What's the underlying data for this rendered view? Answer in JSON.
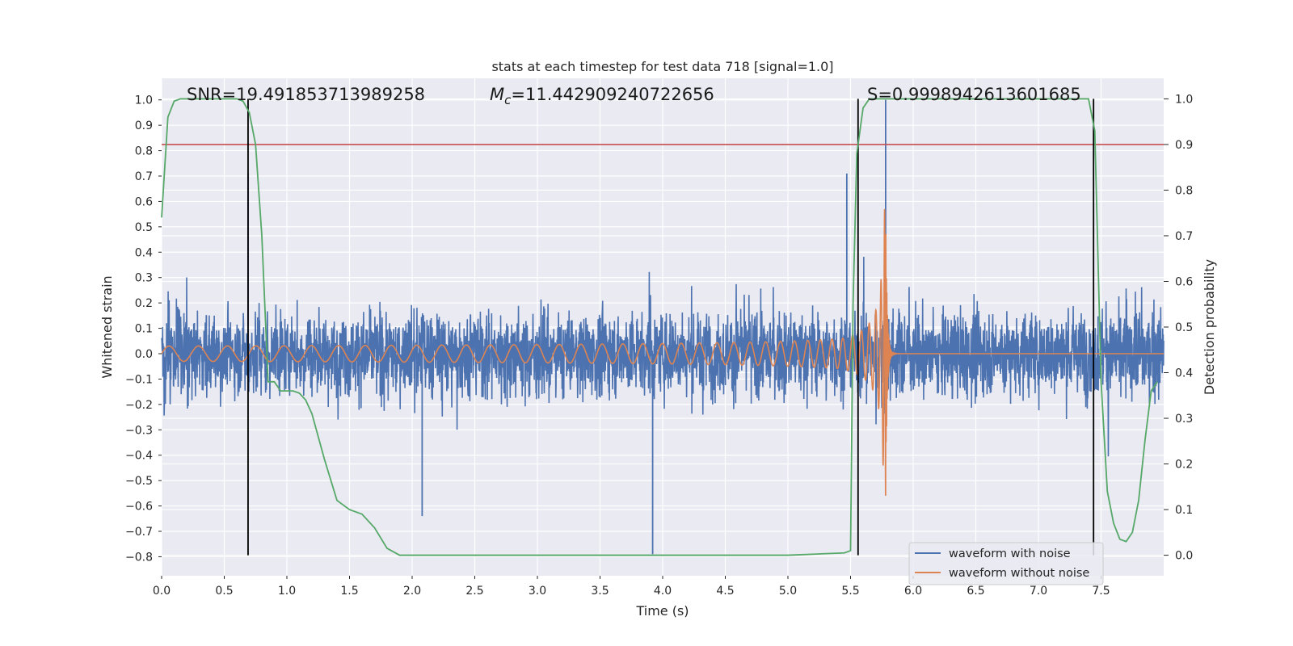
{
  "chart_data": {
    "type": "line",
    "title": "stats at each timestep for test data 718 [signal=1.0]",
    "xlabel": "Time (s)",
    "ylabel": "Whitened strain",
    "ylabel_right": "Detection probability",
    "xlim": [
      0.0,
      8.0
    ],
    "ylim": [
      -0.875,
      1.085
    ],
    "ylim_right": [
      -0.045,
      1.045
    ],
    "xticks": [
      "0.0",
      "0.5",
      "1.0",
      "1.5",
      "2.0",
      "2.5",
      "3.0",
      "3.5",
      "4.0",
      "4.5",
      "5.0",
      "5.5",
      "6.0",
      "6.5",
      "7.0",
      "7.5"
    ],
    "xtick_values": [
      0.0,
      0.5,
      1.0,
      1.5,
      2.0,
      2.5,
      3.0,
      3.5,
      4.0,
      4.5,
      5.0,
      5.5,
      6.0,
      6.5,
      7.0,
      7.5
    ],
    "yticks": [
      "1.0",
      "0.9",
      "0.8",
      "0.7",
      "0.6",
      "0.5",
      "0.4",
      "0.3",
      "0.2",
      "0.1",
      "0.0",
      "−0.1",
      "−0.2",
      "−0.3",
      "−0.4",
      "−0.5",
      "−0.6",
      "−0.7",
      "−0.8"
    ],
    "ytick_values": [
      1.0,
      0.9,
      0.8,
      0.7,
      0.6,
      0.5,
      0.4,
      0.3,
      0.2,
      0.1,
      0.0,
      -0.1,
      -0.2,
      -0.3,
      -0.4,
      -0.5,
      -0.6,
      -0.7,
      -0.8
    ],
    "yticks_right": [
      "1.0",
      "0.9",
      "0.8",
      "0.7",
      "0.6",
      "0.5",
      "0.4",
      "0.3",
      "0.2",
      "0.1",
      "0.0"
    ],
    "ytick_values_right": [
      1.0,
      0.9,
      0.8,
      0.7,
      0.6,
      0.5,
      0.4,
      0.3,
      0.2,
      0.1,
      0.0
    ],
    "annotations": {
      "snr": "SNR=19.491853713989258",
      "mc": "=11.442909240722656",
      "mc_symbol": "M",
      "mc_sub": "c",
      "s_value": "S=0.9998942613601685"
    },
    "threshold_probability": 0.9,
    "vertical_markers": [
      0.69,
      5.56,
      7.44
    ],
    "series": [
      {
        "name": "waveform with noise",
        "color": "#4c72b0",
        "description_values": {
          "typical_amplitude": 0.28,
          "max": 1.0,
          "min": -0.8
        }
      },
      {
        "name": "waveform without noise",
        "color": "#dd8452",
        "chirp": {
          "start_amp": 0.03,
          "merger_time": 5.78,
          "peak_amp": 0.57
        }
      },
      {
        "name": "Detection probability",
        "color": "#55a868",
        "axis": "right",
        "x": [
          0.0,
          0.05,
          0.1,
          0.15,
          0.2,
          0.3,
          0.4,
          0.5,
          0.6,
          0.65,
          0.7,
          0.75,
          0.8,
          0.85,
          0.9,
          0.95,
          1.0,
          1.05,
          1.1,
          1.15,
          1.2,
          1.3,
          1.4,
          1.5,
          1.6,
          1.7,
          1.8,
          1.9,
          2.0,
          3.0,
          4.0,
          5.0,
          5.45,
          5.5,
          5.52,
          5.55,
          5.6,
          5.65,
          5.7,
          5.8,
          6.0,
          7.0,
          7.35,
          7.4,
          7.45,
          7.5,
          7.55,
          7.6,
          7.65,
          7.7,
          7.75,
          7.8,
          7.85,
          7.9,
          7.95
        ],
        "y": [
          0.74,
          0.96,
          0.995,
          1.0,
          1.0,
          1.0,
          1.0,
          1.0,
          1.0,
          0.995,
          0.97,
          0.9,
          0.7,
          0.38,
          0.38,
          0.36,
          0.36,
          0.36,
          0.355,
          0.34,
          0.31,
          0.21,
          0.12,
          0.1,
          0.09,
          0.06,
          0.015,
          0.0,
          0.0,
          0.0,
          0.0,
          0.0,
          0.005,
          0.01,
          0.55,
          0.88,
          0.98,
          1.0,
          1.0,
          1.0,
          1.0,
          1.0,
          1.0,
          1.0,
          0.93,
          0.38,
          0.14,
          0.07,
          0.035,
          0.03,
          0.05,
          0.12,
          0.25,
          0.36,
          0.38
        ]
      }
    ],
    "legend": [
      "waveform with noise",
      "waveform without noise"
    ],
    "legend_position": "bottom-right",
    "grid": true
  }
}
